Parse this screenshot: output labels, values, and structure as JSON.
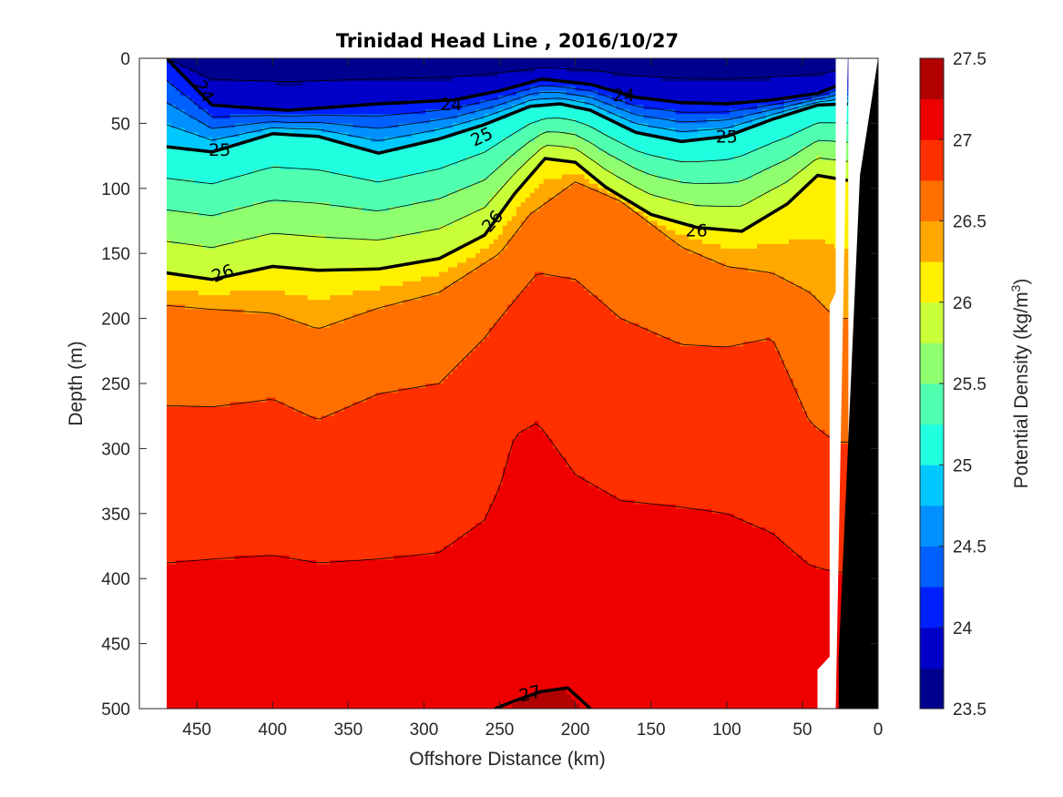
{
  "chart_data": {
    "type": "contour",
    "title": "Trinidad Head Line , 2016/10/27",
    "xlabel": "Offshore Distance (km)",
    "ylabel": "Depth (m)",
    "colorbar_label_main": "Potential Density (kg/m",
    "colorbar_label_sup": "3",
    "colorbar_label_end": ")",
    "x_reversed": true,
    "xlim": [
      0,
      488
    ],
    "ylim": [
      0,
      500
    ],
    "y_reversed": true,
    "xticks": [
      "450",
      "400",
      "350",
      "300",
      "250",
      "200",
      "150",
      "100",
      "50",
      "0"
    ],
    "yticks": [
      "0",
      "50",
      "100",
      "150",
      "200",
      "250",
      "300",
      "350",
      "400",
      "450",
      "500"
    ],
    "colorbar": {
      "range": [
        23.5,
        27.5
      ],
      "ticks": [
        "27.5",
        "27",
        "26.5",
        "26",
        "25.5",
        "25",
        "24.5",
        "24",
        "23.5"
      ],
      "levels": [
        23.5,
        23.75,
        24,
        24.25,
        24.5,
        24.75,
        25,
        25.25,
        25.5,
        25.75,
        26,
        26.25,
        26.5,
        26.75,
        27,
        27.25,
        27.5
      ],
      "colors": [
        "#00008F",
        "#0000C8",
        "#0020FF",
        "#0060FF",
        "#0090FF",
        "#00C8FF",
        "#20FFDF",
        "#50FFAF",
        "#8FFF70",
        "#C8FF38",
        "#FFF000",
        "#FFA800",
        "#FF7000",
        "#FF3000",
        "#EF0000",
        "#B00000"
      ]
    },
    "bold_contours": [
      {
        "level": "24",
        "x": [
          470,
          440,
          390,
          330,
          280,
          250,
          222,
          190,
          160,
          130,
          100,
          70,
          40,
          25
        ],
        "y": [
          0,
          36,
          40,
          35,
          32,
          25,
          16,
          20,
          30,
          34,
          35,
          32,
          27,
          20
        ]
      },
      {
        "level": "25",
        "x": [
          470,
          440,
          400,
          370,
          330,
          290,
          260,
          230,
          210,
          190,
          160,
          130,
          100,
          70,
          40,
          20
        ],
        "y": [
          68,
          72,
          58,
          60,
          73,
          62,
          51,
          37,
          35,
          40,
          57,
          64,
          60,
          47,
          36,
          35
        ]
      },
      {
        "level": "26",
        "x": [
          470,
          440,
          400,
          370,
          330,
          290,
          260,
          240,
          220,
          200,
          180,
          150,
          120,
          90,
          60,
          40,
          20
        ],
        "y": [
          165,
          170,
          160,
          163,
          162,
          154,
          136,
          104,
          77,
          80,
          99,
          120,
          130,
          133,
          112,
          90,
          94
        ]
      },
      {
        "level": "27",
        "x": [
          253,
          240,
          223,
          205,
          190
        ],
        "y": [
          500,
          494,
          487,
          484,
          500
        ]
      }
    ],
    "contour_labels": [
      {
        "text": "24",
        "x": 445,
        "y": 25,
        "angle": 60
      },
      {
        "text": "24",
        "x": 282,
        "y": 35,
        "angle": 0
      },
      {
        "text": "24",
        "x": 168,
        "y": 28,
        "angle": 0
      },
      {
        "text": "25",
        "x": 435,
        "y": 70,
        "angle": 0
      },
      {
        "text": "25",
        "x": 262,
        "y": 60,
        "angle": -25
      },
      {
        "text": "25",
        "x": 100,
        "y": 60,
        "angle": 0
      },
      {
        "text": "26",
        "x": 433,
        "y": 165,
        "angle": -20
      },
      {
        "text": "26",
        "x": 255,
        "y": 125,
        "angle": -50
      },
      {
        "text": "26",
        "x": 120,
        "y": 132,
        "angle": 0
      },
      {
        "text": "27",
        "x": 230,
        "y": 488,
        "angle": -15
      }
    ],
    "bottom_x": [
      0,
      20,
      28,
      28,
      40,
      48
    ],
    "bottom_y": [
      0,
      0,
      420,
      500,
      500,
      500
    ]
  }
}
